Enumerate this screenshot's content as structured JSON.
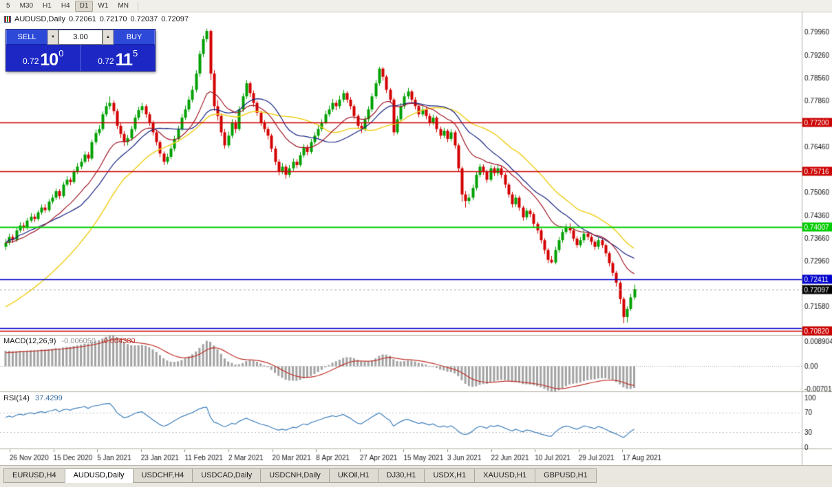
{
  "toolbar": {
    "periods": [
      {
        "label": "5",
        "active": false
      },
      {
        "label": "M30",
        "active": false
      },
      {
        "label": "H1",
        "active": false
      },
      {
        "label": "H4",
        "active": false
      },
      {
        "label": "D1",
        "active": true
      },
      {
        "label": "W1",
        "active": false
      },
      {
        "label": "MN",
        "active": false
      }
    ]
  },
  "header": {
    "symbol": "AUDUSD,Daily",
    "open": "0.72061",
    "high": "0.72170",
    "low": "0.72037",
    "close": "0.72097"
  },
  "one_click": {
    "sell_label": "SELL",
    "buy_label": "BUY",
    "volume": "3.00",
    "down_icon": "▼",
    "up_icon": "▲",
    "bid": {
      "prefix": "0.72",
      "big": "10",
      "sup": "0"
    },
    "ask": {
      "prefix": "0.72",
      "big": "11",
      "sup": "5"
    }
  },
  "indicators": {
    "macd": {
      "name": "MACD(12,26,9)",
      "value_main": "-0.006050",
      "value_signal": "-0.004380",
      "axis": [
        "0.008904",
        "0.00",
        "-0.007013"
      ]
    },
    "rsi": {
      "name": "RSI(14)",
      "value": "37.4299",
      "axis": [
        "100",
        "70",
        "30",
        "0"
      ]
    }
  },
  "price_axis": {
    "ticks": [
      {
        "price": 0.7996,
        "label": "0.79960"
      },
      {
        "price": 0.7926,
        "label": "0.79260"
      },
      {
        "price": 0.7856,
        "label": "0.78560"
      },
      {
        "price": 0.7786,
        "label": "0.77860"
      },
      {
        "price": 0.7646,
        "label": "0.76460"
      },
      {
        "price": 0.7506,
        "label": "0.75060"
      },
      {
        "price": 0.7436,
        "label": "0.74360"
      },
      {
        "price": 0.7366,
        "label": "0.73660"
      },
      {
        "price": 0.7296,
        "label": "0.72960"
      },
      {
        "price": 0.7158,
        "label": "0.71580"
      }
    ],
    "hlines": [
      {
        "price": 0.772,
        "label": "0.77200",
        "color": "#CC0000",
        "lw": 1.3
      },
      {
        "price": 0.75716,
        "label": "0.75716",
        "color": "#CC0000",
        "lw": 1.3
      },
      {
        "price": 0.74007,
        "label": "0.74007",
        "color": "#00CC00",
        "lw": 2
      },
      {
        "price": 0.72411,
        "label": "0.72411",
        "color": "#0000CC",
        "lw": 1.3
      },
      {
        "price": 0.7092,
        "label": "",
        "color": "#0000CC",
        "lw": 1.3
      },
      {
        "price": 0.7082,
        "label": "0.70820",
        "color": "#CC0000",
        "lw": 1.3
      }
    ],
    "current": {
      "price": 0.72097,
      "label": "0.72097",
      "color": "#000000"
    }
  },
  "time_axis": {
    "labels": [
      "26 Nov 2020",
      "15 Dec 2020",
      "5 Jan 2021",
      "23 Jan 2021",
      "11 Feb 2021",
      "2 Mar 2021",
      "20 Mar 2021",
      "8 Apr 2021",
      "27 Apr 2021",
      "15 May 2021",
      "3 Jun 2021",
      "22 Jun 2021",
      "10 Jul 2021",
      "29 Jul 2021",
      "17 Aug 2021"
    ]
  },
  "tabs": {
    "items": [
      {
        "label": "EURUSD,H4",
        "active": false
      },
      {
        "label": "AUDUSD,Daily",
        "active": true
      },
      {
        "label": "USDCHF,H4",
        "active": false
      },
      {
        "label": "USDCAD,Daily",
        "active": false
      },
      {
        "label": "USDCNH,Daily",
        "active": false
      },
      {
        "label": "UKOil,H1",
        "active": false
      },
      {
        "label": "DJ30,H1",
        "active": false
      },
      {
        "label": "USDX,H1",
        "active": false
      },
      {
        "label": "XAUUSD,H1",
        "active": false
      },
      {
        "label": "GBPUSD,H1",
        "active": false
      }
    ]
  },
  "chart_data": {
    "type": "candlestick",
    "title": "AUDUSD,Daily",
    "symbol": "AUDUSD",
    "timeframe": "Daily",
    "ohlc_last": {
      "open": 0.72061,
      "high": 0.7217,
      "low": 0.72037,
      "close": 0.72097
    },
    "y_range": [
      0.707,
      0.8057
    ],
    "up_color": "#00A000",
    "down_color": "#D40000",
    "candles": [
      [
        0.734,
        0.7364,
        0.733,
        0.7352
      ],
      [
        0.7352,
        0.738,
        0.7345,
        0.737
      ],
      [
        0.737,
        0.7378,
        0.7352,
        0.7361
      ],
      [
        0.7361,
        0.7398,
        0.7355,
        0.739
      ],
      [
        0.739,
        0.7415,
        0.7383,
        0.7405
      ],
      [
        0.7405,
        0.7414,
        0.7388,
        0.7398
      ],
      [
        0.7398,
        0.7428,
        0.7392,
        0.742
      ],
      [
        0.742,
        0.7443,
        0.7414,
        0.7432
      ],
      [
        0.7432,
        0.744,
        0.7416,
        0.7425
      ],
      [
        0.7425,
        0.7452,
        0.7419,
        0.7445
      ],
      [
        0.7445,
        0.7469,
        0.7438,
        0.746
      ],
      [
        0.746,
        0.747,
        0.7444,
        0.7452
      ],
      [
        0.7452,
        0.7486,
        0.7446,
        0.7478
      ],
      [
        0.7478,
        0.75,
        0.747,
        0.749
      ],
      [
        0.749,
        0.7519,
        0.7483,
        0.751
      ],
      [
        0.751,
        0.7516,
        0.7486,
        0.7495
      ],
      [
        0.7495,
        0.7538,
        0.749,
        0.753
      ],
      [
        0.753,
        0.7556,
        0.7524,
        0.7545
      ],
      [
        0.7545,
        0.7552,
        0.7528,
        0.7538
      ],
      [
        0.7538,
        0.7578,
        0.7532,
        0.757
      ],
      [
        0.757,
        0.7596,
        0.7562,
        0.7585
      ],
      [
        0.7585,
        0.761,
        0.7577,
        0.76
      ],
      [
        0.76,
        0.7632,
        0.7594,
        0.7622
      ],
      [
        0.7622,
        0.763,
        0.76,
        0.761
      ],
      [
        0.761,
        0.7668,
        0.7604,
        0.766
      ],
      [
        0.766,
        0.7698,
        0.7652,
        0.7688
      ],
      [
        0.7688,
        0.7712,
        0.768,
        0.77
      ],
      [
        0.77,
        0.7754,
        0.7694,
        0.7745
      ],
      [
        0.7745,
        0.7782,
        0.7738,
        0.777
      ],
      [
        0.777,
        0.78,
        0.776,
        0.778
      ],
      [
        0.778,
        0.7788,
        0.7744,
        0.7755
      ],
      [
        0.7755,
        0.7762,
        0.77,
        0.771
      ],
      [
        0.771,
        0.7718,
        0.7672,
        0.7685
      ],
      [
        0.7685,
        0.7694,
        0.7648,
        0.766
      ],
      [
        0.766,
        0.7682,
        0.765,
        0.7672
      ],
      [
        0.7672,
        0.771,
        0.7664,
        0.77
      ],
      [
        0.77,
        0.7744,
        0.7692,
        0.7735
      ],
      [
        0.7735,
        0.7768,
        0.7727,
        0.7758
      ],
      [
        0.7758,
        0.778,
        0.7748,
        0.777
      ],
      [
        0.777,
        0.7776,
        0.7734,
        0.7745
      ],
      [
        0.7745,
        0.7752,
        0.771,
        0.772
      ],
      [
        0.772,
        0.7726,
        0.768,
        0.769
      ],
      [
        0.769,
        0.7698,
        0.765,
        0.766
      ],
      [
        0.766,
        0.7666,
        0.7614,
        0.7625
      ],
      [
        0.7625,
        0.7632,
        0.759,
        0.76
      ],
      [
        0.76,
        0.7625,
        0.7592,
        0.7615
      ],
      [
        0.7615,
        0.765,
        0.7608,
        0.764
      ],
      [
        0.764,
        0.768,
        0.7632,
        0.767
      ],
      [
        0.767,
        0.771,
        0.7662,
        0.77
      ],
      [
        0.77,
        0.7746,
        0.7694,
        0.7735
      ],
      [
        0.7735,
        0.7772,
        0.7728,
        0.776
      ],
      [
        0.776,
        0.78,
        0.7752,
        0.779
      ],
      [
        0.779,
        0.7832,
        0.7782,
        0.782
      ],
      [
        0.782,
        0.788,
        0.7812,
        0.787
      ],
      [
        0.787,
        0.794,
        0.786,
        0.793
      ],
      [
        0.793,
        0.7986,
        0.792,
        0.7975
      ],
      [
        0.7975,
        0.8007,
        0.7966,
        0.8
      ],
      [
        0.8,
        0.8005,
        0.785,
        0.787
      ],
      [
        0.787,
        0.788,
        0.7756,
        0.777
      ],
      [
        0.777,
        0.7788,
        0.7726,
        0.774
      ],
      [
        0.774,
        0.7748,
        0.7678,
        0.769
      ],
      [
        0.769,
        0.77,
        0.764,
        0.765
      ],
      [
        0.765,
        0.7692,
        0.7642,
        0.768
      ],
      [
        0.768,
        0.773,
        0.7672,
        0.772
      ],
      [
        0.772,
        0.7728,
        0.7688,
        0.77
      ],
      [
        0.77,
        0.777,
        0.7694,
        0.776
      ],
      [
        0.776,
        0.781,
        0.7752,
        0.78
      ],
      [
        0.78,
        0.785,
        0.7792,
        0.784
      ],
      [
        0.784,
        0.7846,
        0.7798,
        0.781
      ],
      [
        0.781,
        0.7818,
        0.7768,
        0.778
      ],
      [
        0.778,
        0.7786,
        0.774,
        0.775
      ],
      [
        0.775,
        0.7756,
        0.771,
        0.772
      ],
      [
        0.772,
        0.7728,
        0.769,
        0.77
      ],
      [
        0.77,
        0.7708,
        0.7668,
        0.768
      ],
      [
        0.768,
        0.7686,
        0.763,
        0.764
      ],
      [
        0.764,
        0.7648,
        0.759,
        0.76
      ],
      [
        0.76,
        0.7608,
        0.7558,
        0.757
      ],
      [
        0.757,
        0.7596,
        0.7562,
        0.7585
      ],
      [
        0.7585,
        0.7592,
        0.7548,
        0.756
      ],
      [
        0.756,
        0.759,
        0.7552,
        0.758
      ],
      [
        0.758,
        0.761,
        0.7572,
        0.76
      ],
      [
        0.76,
        0.7608,
        0.758,
        0.759
      ],
      [
        0.759,
        0.763,
        0.7584,
        0.762
      ],
      [
        0.762,
        0.7654,
        0.7612,
        0.7645
      ],
      [
        0.7645,
        0.7652,
        0.762,
        0.763
      ],
      [
        0.763,
        0.767,
        0.7624,
        0.766
      ],
      [
        0.766,
        0.769,
        0.7652,
        0.768
      ],
      [
        0.768,
        0.7712,
        0.7672,
        0.77
      ],
      [
        0.77,
        0.773,
        0.7692,
        0.772
      ],
      [
        0.772,
        0.7756,
        0.7714,
        0.7745
      ],
      [
        0.7745,
        0.7772,
        0.7738,
        0.776
      ],
      [
        0.776,
        0.7792,
        0.7752,
        0.778
      ],
      [
        0.778,
        0.7788,
        0.7758,
        0.777
      ],
      [
        0.777,
        0.7802,
        0.7762,
        0.779
      ],
      [
        0.779,
        0.782,
        0.7782,
        0.781
      ],
      [
        0.781,
        0.7816,
        0.778,
        0.779
      ],
      [
        0.779,
        0.7798,
        0.776,
        0.777
      ],
      [
        0.777,
        0.7776,
        0.773,
        0.774
      ],
      [
        0.774,
        0.7746,
        0.77,
        0.771
      ],
      [
        0.771,
        0.7718,
        0.7688,
        0.77
      ],
      [
        0.77,
        0.774,
        0.7692,
        0.773
      ],
      [
        0.773,
        0.777,
        0.7722,
        0.776
      ],
      [
        0.776,
        0.781,
        0.7752,
        0.78
      ],
      [
        0.78,
        0.785,
        0.7792,
        0.784
      ],
      [
        0.784,
        0.7891,
        0.7832,
        0.7885
      ],
      [
        0.7885,
        0.789,
        0.7848,
        0.786
      ],
      [
        0.786,
        0.7866,
        0.781,
        0.782
      ],
      [
        0.782,
        0.7826,
        0.778,
        0.779
      ],
      [
        0.779,
        0.7796,
        0.768,
        0.769
      ],
      [
        0.769,
        0.774,
        0.7684,
        0.773
      ],
      [
        0.773,
        0.778,
        0.7722,
        0.777
      ],
      [
        0.777,
        0.781,
        0.7762,
        0.78
      ],
      [
        0.78,
        0.7826,
        0.7792,
        0.7815
      ],
      [
        0.7815,
        0.782,
        0.778,
        0.779
      ],
      [
        0.779,
        0.7798,
        0.776,
        0.777
      ],
      [
        0.777,
        0.7776,
        0.7736,
        0.7745
      ],
      [
        0.7745,
        0.777,
        0.7738,
        0.776
      ],
      [
        0.776,
        0.7766,
        0.773,
        0.774
      ],
      [
        0.774,
        0.7748,
        0.771,
        0.772
      ],
      [
        0.772,
        0.7744,
        0.7712,
        0.7735
      ],
      [
        0.7735,
        0.774,
        0.769,
        0.77
      ],
      [
        0.77,
        0.7708,
        0.767,
        0.768
      ],
      [
        0.768,
        0.7704,
        0.7672,
        0.7695
      ],
      [
        0.7695,
        0.77,
        0.766,
        0.767
      ],
      [
        0.767,
        0.77,
        0.7662,
        0.769
      ],
      [
        0.769,
        0.7696,
        0.764,
        0.765
      ],
      [
        0.765,
        0.7656,
        0.757,
        0.758
      ],
      [
        0.758,
        0.7586,
        0.7478,
        0.75
      ],
      [
        0.75,
        0.751,
        0.746,
        0.748
      ],
      [
        0.748,
        0.7502,
        0.747,
        0.749
      ],
      [
        0.749,
        0.753,
        0.7482,
        0.752
      ],
      [
        0.752,
        0.757,
        0.7512,
        0.756
      ],
      [
        0.756,
        0.7594,
        0.7552,
        0.7585
      ],
      [
        0.7585,
        0.7592,
        0.756,
        0.757
      ],
      [
        0.757,
        0.7576,
        0.7536,
        0.7545
      ],
      [
        0.7545,
        0.759,
        0.7538,
        0.758
      ],
      [
        0.758,
        0.7586,
        0.7556,
        0.7565
      ],
      [
        0.7565,
        0.759,
        0.7556,
        0.758
      ],
      [
        0.758,
        0.7588,
        0.755,
        0.756
      ],
      [
        0.756,
        0.7566,
        0.752,
        0.753
      ],
      [
        0.753,
        0.7536,
        0.749,
        0.75
      ],
      [
        0.75,
        0.7508,
        0.746,
        0.747
      ],
      [
        0.747,
        0.75,
        0.7462,
        0.749
      ],
      [
        0.749,
        0.7496,
        0.745,
        0.746
      ],
      [
        0.746,
        0.7466,
        0.742,
        0.743
      ],
      [
        0.743,
        0.7458,
        0.7422,
        0.745
      ],
      [
        0.745,
        0.7456,
        0.743,
        0.744
      ],
      [
        0.744,
        0.7446,
        0.74,
        0.741
      ],
      [
        0.741,
        0.7416,
        0.738,
        0.739
      ],
      [
        0.739,
        0.7396,
        0.735,
        0.736
      ],
      [
        0.736,
        0.7366,
        0.7318,
        0.733
      ],
      [
        0.733,
        0.7336,
        0.729,
        0.73
      ],
      [
        0.73,
        0.7312,
        0.7289,
        0.7292
      ],
      [
        0.7292,
        0.734,
        0.7286,
        0.733
      ],
      [
        0.733,
        0.737,
        0.7322,
        0.736
      ],
      [
        0.736,
        0.7394,
        0.7352,
        0.7385
      ],
      [
        0.7385,
        0.741,
        0.7378,
        0.74
      ],
      [
        0.74,
        0.7412,
        0.738,
        0.739
      ],
      [
        0.739,
        0.7396,
        0.7356,
        0.7365
      ],
      [
        0.7365,
        0.7372,
        0.7336,
        0.7345
      ],
      [
        0.7345,
        0.737,
        0.7338,
        0.736
      ],
      [
        0.736,
        0.739,
        0.7352,
        0.738
      ],
      [
        0.738,
        0.7388,
        0.736,
        0.737
      ],
      [
        0.737,
        0.7376,
        0.7346,
        0.7355
      ],
      [
        0.7355,
        0.7362,
        0.733,
        0.734
      ],
      [
        0.734,
        0.7368,
        0.7332,
        0.736
      ],
      [
        0.736,
        0.7366,
        0.7336,
        0.7345
      ],
      [
        0.7345,
        0.735,
        0.731,
        0.732
      ],
      [
        0.732,
        0.7326,
        0.728,
        0.729
      ],
      [
        0.729,
        0.7296,
        0.725,
        0.726
      ],
      [
        0.726,
        0.7266,
        0.7218,
        0.723
      ],
      [
        0.723,
        0.7236,
        0.7165,
        0.718
      ],
      [
        0.718,
        0.7186,
        0.7106,
        0.7125
      ],
      [
        0.7125,
        0.7158,
        0.7108,
        0.715
      ],
      [
        0.715,
        0.7196,
        0.7144,
        0.7185
      ],
      [
        0.7185,
        0.7224,
        0.7178,
        0.721
      ]
    ],
    "moving_averages": [
      {
        "type": "sma",
        "period": 34,
        "color": "#F0D020",
        "seed": 0.715
      },
      {
        "type": "sma",
        "period": 22,
        "color": "#152080",
        "seed": null
      },
      {
        "type": "ema",
        "period": 16,
        "color": "#A01828",
        "seed": null
      }
    ],
    "macd": {
      "fast": 12,
      "slow": 26,
      "signal": 9,
      "range": [
        -0.0078,
        0.0095
      ],
      "bar_color": "#A2A2A2",
      "signal_color": "#C03028"
    },
    "rsi": {
      "period": 14,
      "range": [
        0,
        100
      ],
      "levels": [
        30,
        70
      ],
      "color": "#3C7EBB"
    }
  }
}
